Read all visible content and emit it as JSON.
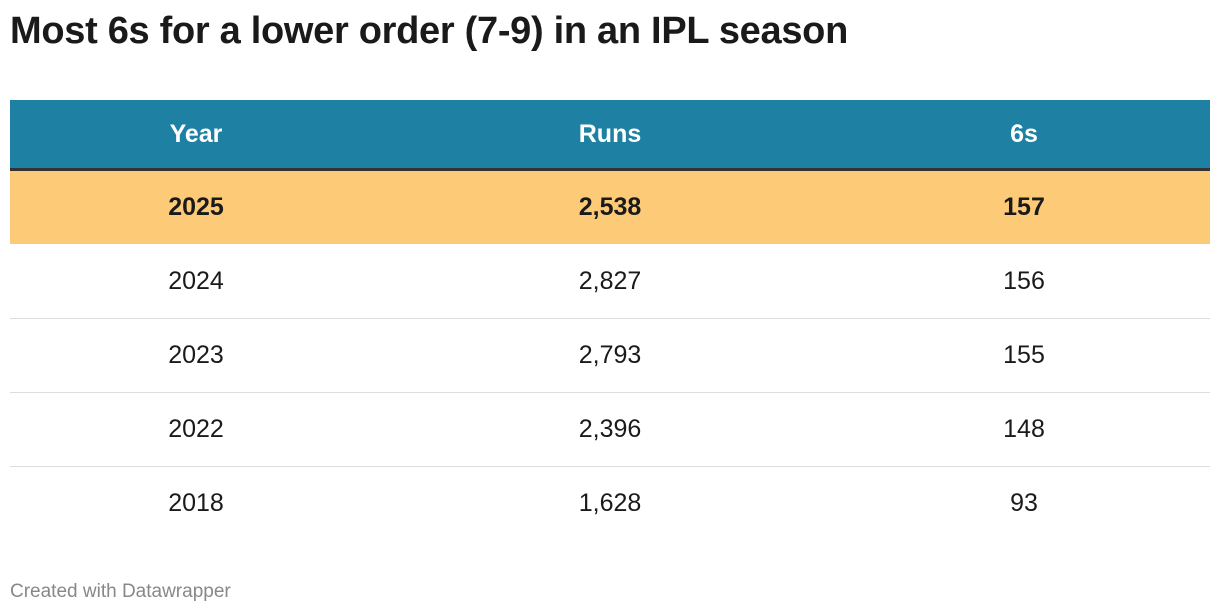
{
  "title": "Most 6s for a lower order (7-9) in an IPL season",
  "table": {
    "header": [
      "Year",
      "Runs",
      "6s"
    ],
    "rows": [
      [
        "2025",
        "2,538",
        "157"
      ],
      [
        "2024",
        "2,827",
        "156"
      ],
      [
        "2023",
        "2,793",
        "155"
      ],
      [
        "2022",
        "2,396",
        "148"
      ],
      [
        "2018",
        "1,628",
        "93"
      ]
    ]
  },
  "footer": "Created with Datawrapper"
}
